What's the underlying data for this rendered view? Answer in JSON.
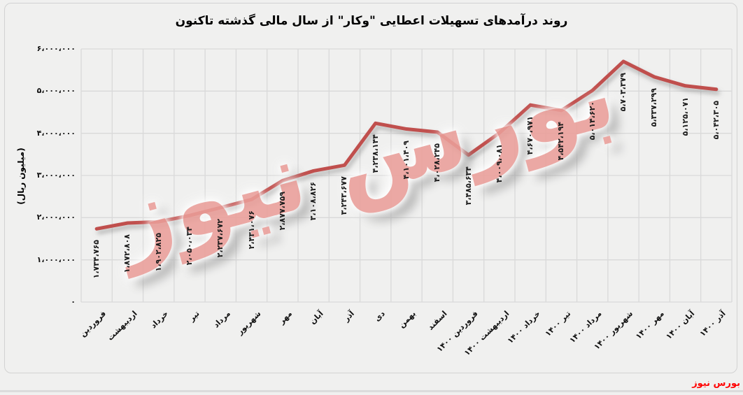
{
  "title": "روند درآمدهای تسهیلات اعطایی \"وکار\" از سال مالی گذشته تاکنون",
  "watermark": {
    "text": "بورس نیوز",
    "color": "#eb9f9a"
  },
  "footer": {
    "brand": "بورس نیوز",
    "color": "#ff0000"
  },
  "chart_data": {
    "type": "line",
    "title": "روند درآمدهای تسهیلات اعطایی \"وکار\" از سال مالی گذشته تاکنون",
    "xlabel": "",
    "ylabel": "(میلیون ریال)",
    "categories": [
      "فروردین",
      "اردیبهشت",
      "خرداد",
      "تیر",
      "مرداد",
      "شهریور",
      "مهر",
      "آبان",
      "آذر",
      "دی",
      "بهمن",
      "اسفند",
      "فروردین ۱۴۰۰",
      "اردیبهشت ۱۴۰۰",
      "خرداد ۱۴۰۰",
      "تیر ۱۴۰۰",
      "مرداد ۱۴۰۰",
      "شهریور ۱۴۰۰",
      "مهر ۱۴۰۰",
      "آبان ۱۴۰۰",
      "آذر ۱۴۰۰"
    ],
    "values": [
      1734765,
      1872808,
      1902825,
      2050034,
      2237672,
      2431076,
      2877759,
      3108826,
      3243677,
      4238144,
      4101409,
      4028245,
      3485634,
      4009081,
      4670971,
      4542194,
      5014620,
      5703379,
      5337299,
      5125071,
      5042305
    ],
    "value_labels": [
      "۱،۷۳۴،۷۶۵",
      "۱،۸۷۲،۸۰۸",
      "۱،۹۰۲،۸۲۵",
      "۲،۰۵۰،۰۳۴",
      "۲،۲۳۷،۶۷۲",
      "۲،۴۳۱،۰۷۶",
      "۲،۸۷۷،۷۵۹",
      "۳،۱۰۸،۸۲۶",
      "۳،۲۴۳،۶۷۷",
      "۴،۲۳۸،۱۴۴",
      "۴،۱۰۱،۴۰۹",
      "۴،۰۲۸،۲۴۵",
      "۳،۴۸۵،۶۳۴",
      "۴،۰۰۹،۰۸۱",
      "۴،۶۷۰،۹۷۱",
      "۴،۵۴۲،۱۹۴",
      "۵،۰۱۴،۶۲۰",
      "۵،۷۰۳،۳۷۹",
      "۵،۳۳۷،۲۹۹",
      "۵،۱۲۵،۰۷۱",
      "۵،۰۴۲،۳۰۵"
    ],
    "y_tick_labels": [
      "۰",
      "۱،۰۰۰،۰۰۰",
      "۲،۰۰۰،۰۰۰",
      "۳،۰۰۰،۰۰۰",
      "۴،۰۰۰،۰۰۰",
      "۵،۰۰۰،۰۰۰",
      "۶،۰۰۰،۰۰۰"
    ],
    "ylim": [
      0,
      6000000
    ],
    "grid": true,
    "legend": "none",
    "line_color": "#c0504d",
    "grid_color": "#d9d9d9"
  }
}
